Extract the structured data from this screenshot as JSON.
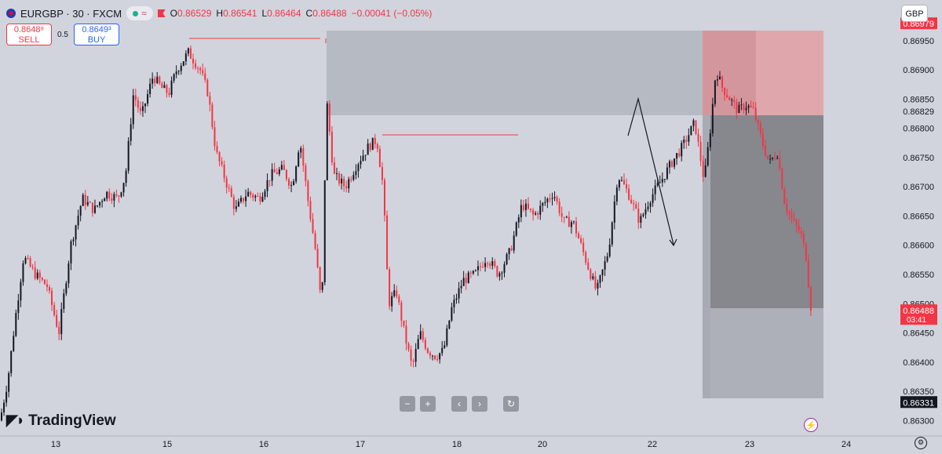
{
  "header": {
    "symbol": "EURGBP · 30 · FXCM",
    "wave_icon": "≈",
    "open_label": "O",
    "open": "0.86529",
    "high_label": "H",
    "high": "0.86541",
    "low_label": "L",
    "low": "0.86464",
    "close_label": "C",
    "close": "0.86488",
    "change": "−0.00041 (−0.05%)"
  },
  "trade": {
    "sell_price": "0.8648⁸",
    "sell_label": "SELL",
    "spread": "0.5",
    "buy_price": "0.8649³",
    "buy_label": "BUY"
  },
  "currency_button": "GBP",
  "brand": "TradingView",
  "nav_icons": [
    "minus-icon",
    "plus-icon",
    "chevron-left-icon",
    "chevron-right-icon",
    "reset-icon"
  ],
  "colors": {
    "background": "#d1d4dc",
    "up_candle": "#131722",
    "down_candle": "#f23645",
    "supply_zone": "#b2b5be",
    "target_zone": "#e2a5ab",
    "stop_zone": "#888a90",
    "position_zone": "#adb0b8"
  },
  "chart_data": {
    "type": "candlestick",
    "instrument": "EURGBP",
    "timeframe": "30",
    "ylim": [
      0.8628,
      0.8699
    ],
    "y_ticks": [
      "0.86950",
      "0.86900",
      "0.86850",
      "0.86800",
      "0.86750",
      "0.86700",
      "0.86650",
      "0.86600",
      "0.86550",
      "0.86500",
      "0.86450",
      "0.86400",
      "0.86350",
      "0.86300"
    ],
    "y_tick_values": [
      0.8695,
      0.869,
      0.8685,
      0.868,
      0.8675,
      0.867,
      0.8665,
      0.866,
      0.8655,
      0.865,
      0.8645,
      0.864,
      0.8635,
      0.863
    ],
    "x_ticks": [
      "13",
      "15",
      "16",
      "17",
      "18",
      "20",
      "22",
      "23",
      "24"
    ],
    "x_tick_values": [
      13,
      15,
      16,
      17,
      18,
      20,
      22,
      23,
      24
    ],
    "price_labels": [
      {
        "text": "0.86979",
        "value": 0.86979,
        "style": "target"
      },
      {
        "text": "0.86829",
        "value": 0.86829,
        "style": "plain"
      },
      {
        "text": "0.86488",
        "time": "03:41",
        "value": 0.86488,
        "style": "current"
      },
      {
        "text": "0.86331",
        "value": 0.86331,
        "style": "stop"
      }
    ],
    "path": [
      [
        0,
        0.863
      ],
      [
        10,
        0.8637
      ],
      [
        20,
        0.8648
      ],
      [
        30,
        0.8658
      ],
      [
        45,
        0.8655
      ],
      [
        60,
        0.8653
      ],
      [
        75,
        0.8645
      ],
      [
        90,
        0.866
      ],
      [
        105,
        0.8668
      ],
      [
        120,
        0.8666
      ],
      [
        135,
        0.8669
      ],
      [
        150,
        0.8668
      ],
      [
        160,
        0.8672
      ],
      [
        170,
        0.8686
      ],
      [
        180,
        0.8682
      ],
      [
        195,
        0.8689
      ],
      [
        205,
        0.8687
      ],
      [
        215,
        0.8686
      ],
      [
        225,
        0.869
      ],
      [
        240,
        0.8693
      ],
      [
        255,
        0.869
      ],
      [
        265,
        0.8686
      ],
      [
        275,
        0.8676
      ],
      [
        285,
        0.8672
      ],
      [
        300,
        0.8666
      ],
      [
        315,
        0.8669
      ],
      [
        330,
        0.8668
      ],
      [
        345,
        0.8672
      ],
      [
        360,
        0.8673
      ],
      [
        372,
        0.867
      ],
      [
        382,
        0.8678
      ],
      [
        392,
        0.8668
      ],
      [
        402,
        0.8659
      ],
      [
        410,
        0.8649
      ],
      [
        416,
        0.8685
      ],
      [
        425,
        0.8672
      ],
      [
        440,
        0.867
      ],
      [
        455,
        0.8674
      ],
      [
        470,
        0.8677
      ],
      [
        480,
        0.8678
      ],
      [
        488,
        0.867
      ],
      [
        495,
        0.865
      ],
      [
        505,
        0.8652
      ],
      [
        515,
        0.8645
      ],
      [
        525,
        0.8639
      ],
      [
        535,
        0.8645
      ],
      [
        545,
        0.8642
      ],
      [
        555,
        0.8641
      ],
      [
        565,
        0.8642
      ],
      [
        575,
        0.8649
      ],
      [
        590,
        0.8654
      ],
      [
        605,
        0.8655
      ],
      [
        620,
        0.8658
      ],
      [
        635,
        0.8655
      ],
      [
        650,
        0.8659
      ],
      [
        665,
        0.8667
      ],
      [
        680,
        0.8665
      ],
      [
        692,
        0.8667
      ],
      [
        705,
        0.8669
      ],
      [
        718,
        0.8664
      ],
      [
        730,
        0.8664
      ],
      [
        745,
        0.8658
      ],
      [
        760,
        0.8652
      ],
      [
        775,
        0.8659
      ],
      [
        787,
        0.8672
      ],
      [
        800,
        0.8669
      ],
      [
        815,
        0.8664
      ],
      [
        828,
        0.8668
      ],
      [
        842,
        0.8671
      ],
      [
        855,
        0.8674
      ],
      [
        870,
        0.8677
      ],
      [
        885,
        0.8681
      ],
      [
        897,
        0.8671
      ],
      [
        905,
        0.868
      ],
      [
        912,
        0.869
      ],
      [
        920,
        0.8687
      ],
      [
        930,
        0.8685
      ],
      [
        940,
        0.8683
      ],
      [
        950,
        0.8684
      ],
      [
        960,
        0.8683
      ],
      [
        970,
        0.8678
      ],
      [
        980,
        0.8674
      ],
      [
        990,
        0.8676
      ],
      [
        1000,
        0.8667
      ],
      [
        1010,
        0.8664
      ],
      [
        1020,
        0.8662
      ],
      [
        1027,
        0.8658
      ],
      [
        1033,
        0.86488
      ]
    ]
  }
}
